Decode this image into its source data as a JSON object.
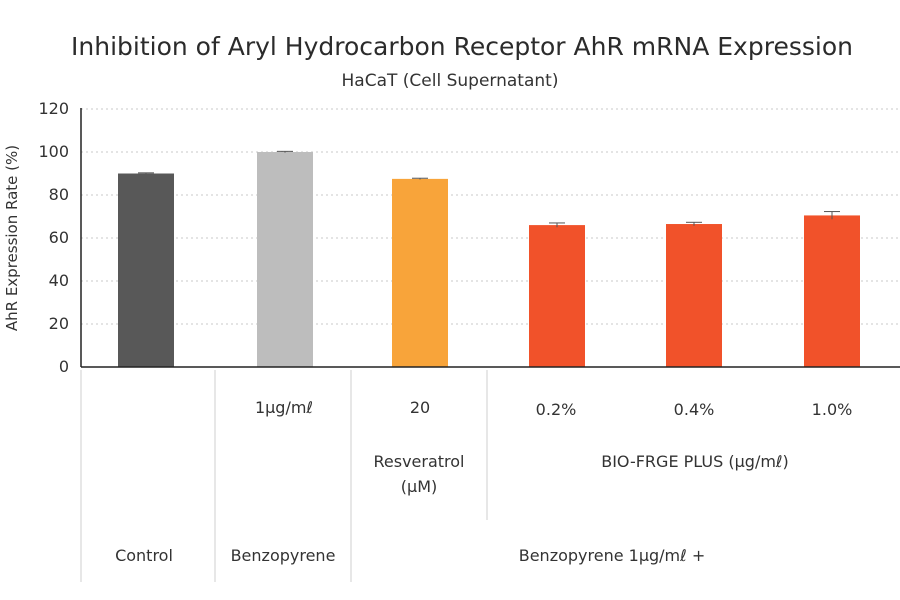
{
  "chart_data": {
    "type": "bar",
    "title": "Inhibition of Aryl Hydrocarbon Receptor AhR mRNA Expression",
    "subtitle": "HaCaT (Cell Supernatant)",
    "ylabel": "AhR Expression Rate (%)",
    "ylim": [
      0,
      120
    ],
    "yticks": [
      0,
      20,
      40,
      60,
      80,
      100,
      120
    ],
    "grid": true,
    "categories": [
      "Control",
      "Benzopyrene 1µg/mℓ",
      "Resveratrol 20 µM",
      "BIO-FRGE PLUS 0.2%",
      "BIO-FRGE PLUS 0.4%",
      "BIO-FRGE PLUS 1.0%"
    ],
    "values": [
      90,
      100,
      87.5,
      66,
      66.5,
      70.5
    ],
    "errors": [
      0.3,
      0.3,
      0.3,
      1.0,
      0.8,
      1.8
    ],
    "colors": [
      "#585858",
      "#bdbdbd",
      "#f8a43a",
      "#f1522a",
      "#f1522a",
      "#f1522a"
    ],
    "table": {
      "doses": [
        "",
        "1µg/mℓ",
        "20",
        "0.2%",
        "0.4%",
        "1.0%"
      ],
      "resveratrol_label_1": "Resveratrol",
      "resveratrol_label_2": "(µM)",
      "biofrge_label": "BIO-FRGE PLUS (µg/mℓ)",
      "control_label": "Control",
      "benzopyrene_label": "Benzopyrene",
      "combo_label": "Benzopyrene 1µg/mℓ +"
    }
  }
}
